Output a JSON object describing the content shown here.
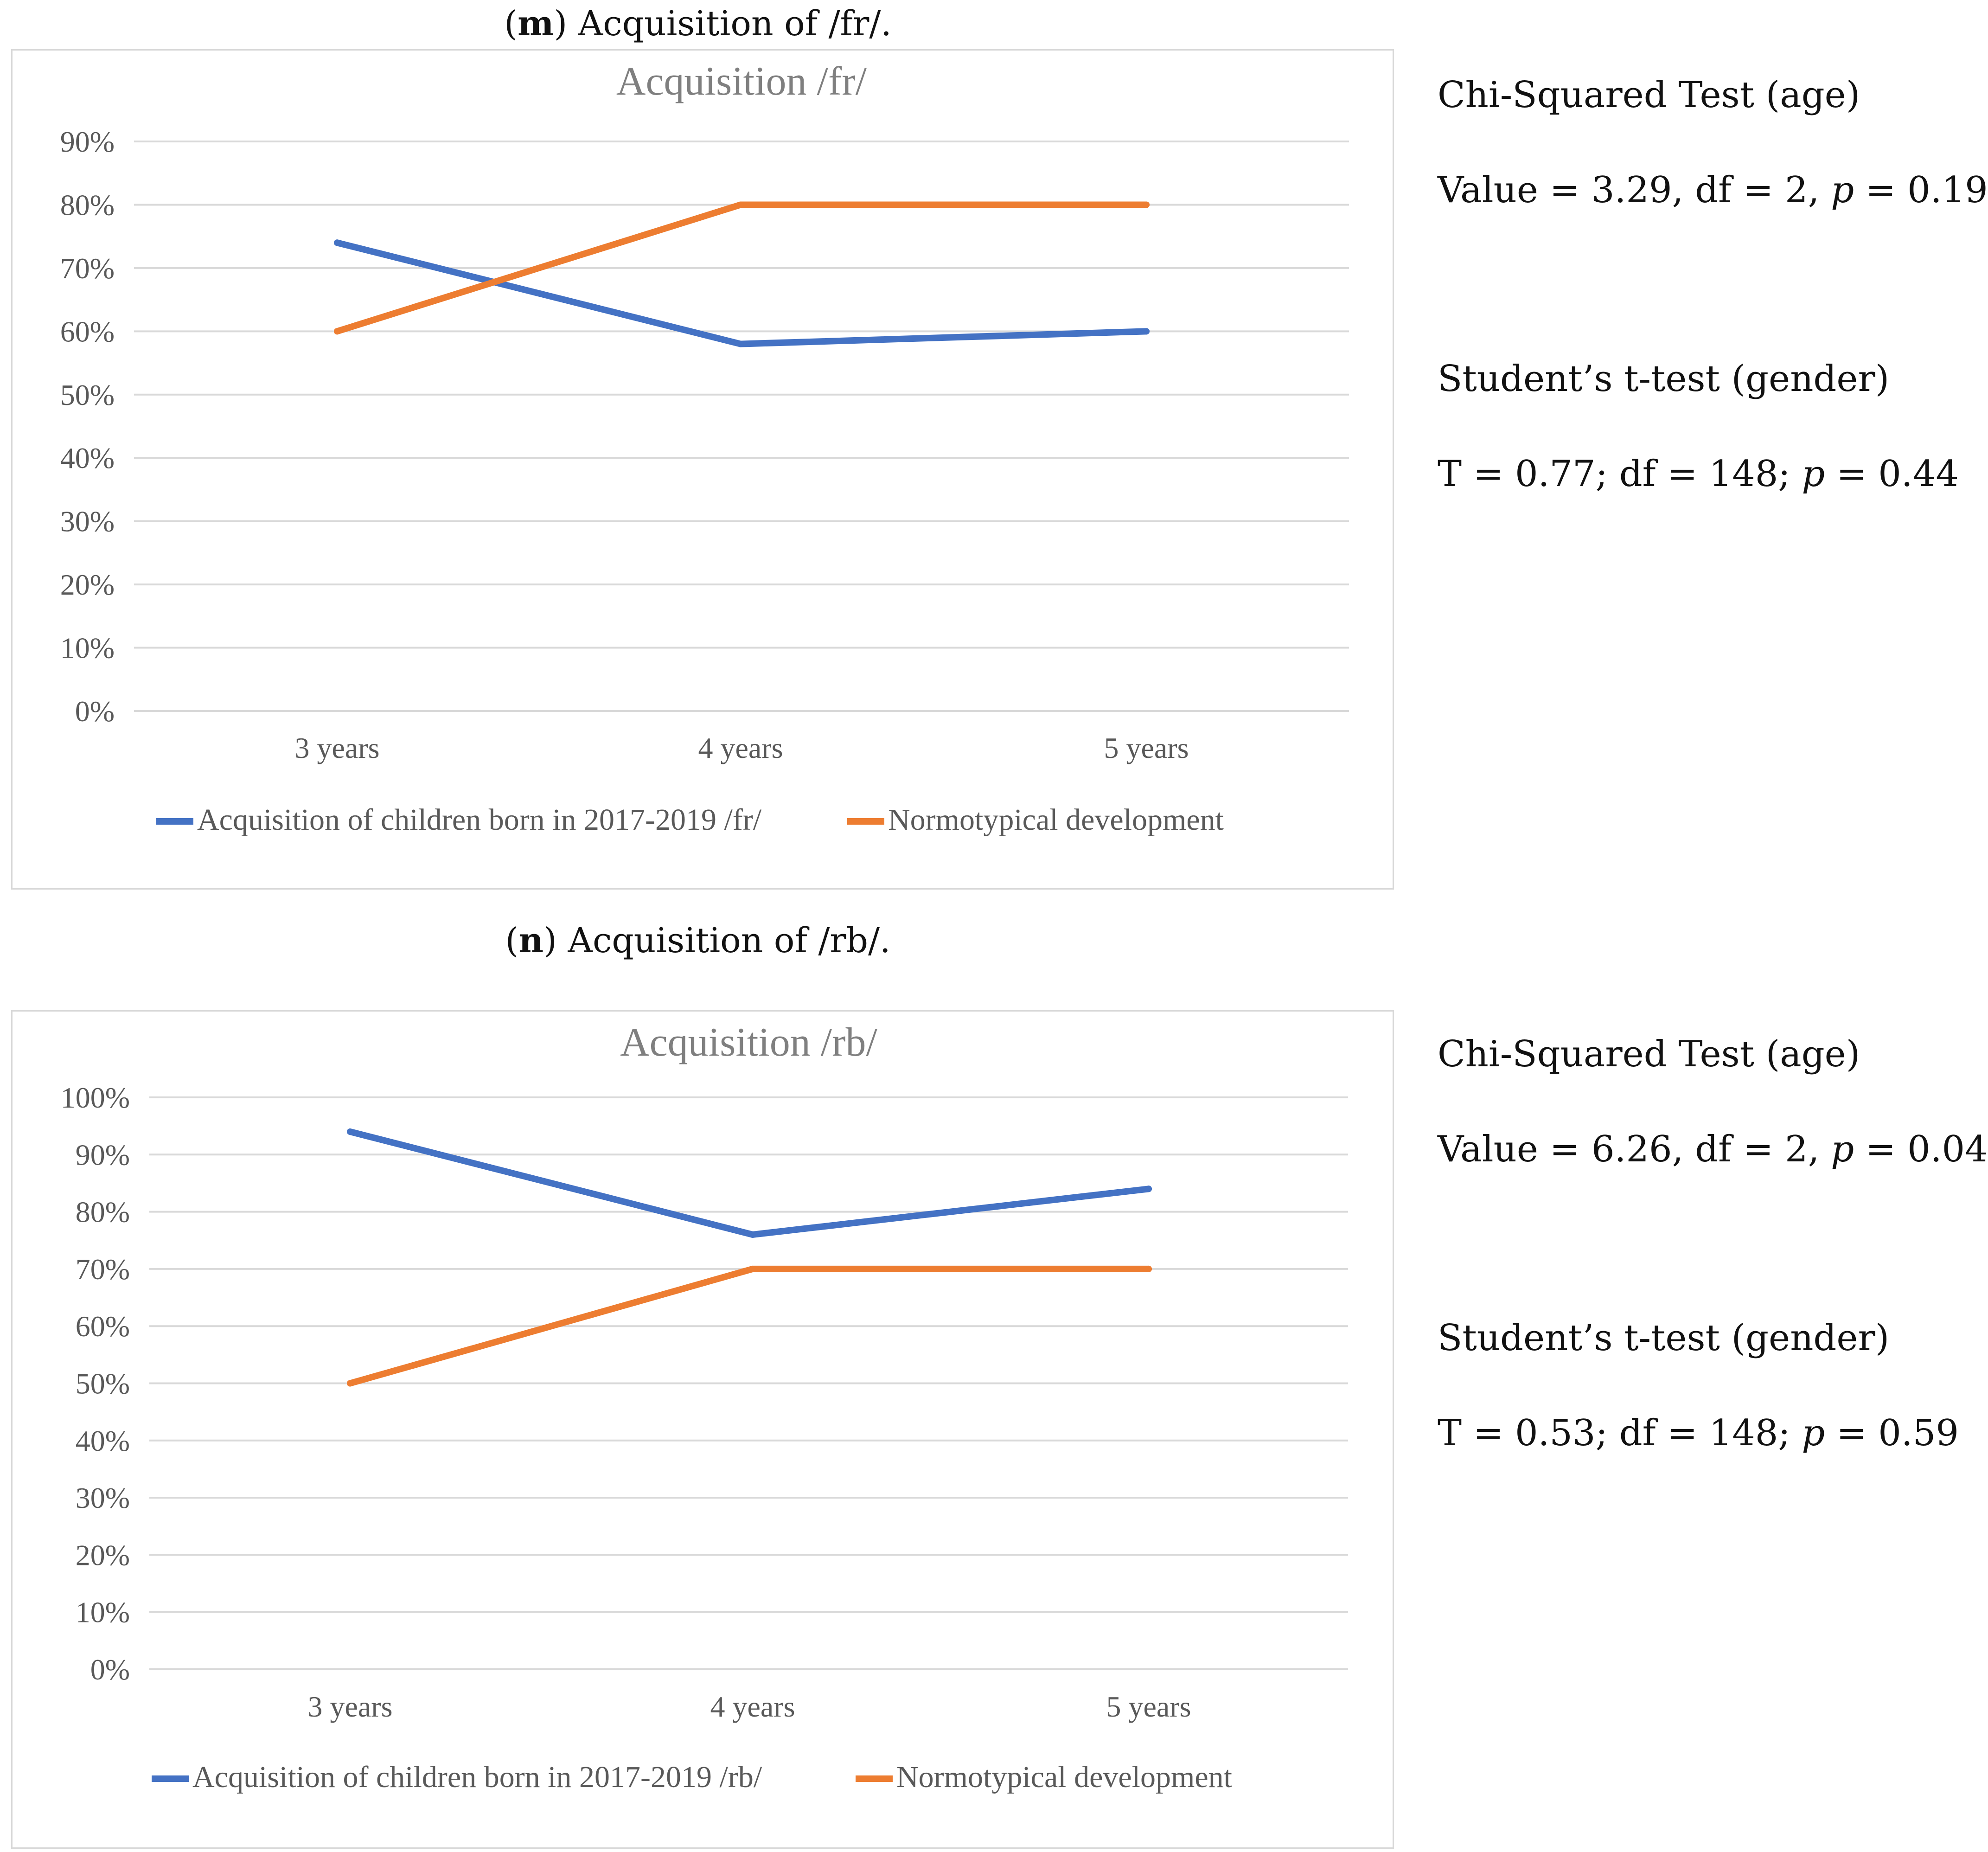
{
  "panels": [
    {
      "caption_letter": "m",
      "caption_text": ") Acquisition of /fr/.",
      "stats": {
        "chi_label": "Chi-Squared Test (age)",
        "chi_prefix": "Value = 3.29, df = 2, ",
        "chi_p_symbol": "p",
        "chi_suffix": " = 0.19",
        "t_label": "Student’s t-test (gender)",
        "t_prefix": "T = 0.77; df = 148; ",
        "t_p_symbol": "p",
        "t_suffix": " = 0.44"
      }
    },
    {
      "caption_letter": "n",
      "caption_text": ") Acquisition of /rb/.",
      "stats": {
        "chi_label": "Chi-Squared Test (age)",
        "chi_prefix": "Value = 6.26, df = 2, ",
        "chi_p_symbol": "p",
        "chi_suffix": " = 0.04",
        "t_label": "Student’s t-test (gender)",
        "t_prefix": "T = 0.53; df = 148; ",
        "t_p_symbol": "p",
        "t_suffix": " = 0.59"
      }
    }
  ],
  "colors": {
    "blue": "#4472c4",
    "orange": "#ed7d31",
    "grid": "#d9d9d9"
  },
  "chart_data": [
    {
      "type": "line",
      "title": "Acquisition /fr/",
      "categories": [
        "3 years",
        "4 years",
        "5 years"
      ],
      "y_ticks": [
        "0%",
        "10%",
        "20%",
        "30%",
        "40%",
        "50%",
        "60%",
        "70%",
        "80%",
        "90%"
      ],
      "ylim": [
        0,
        90
      ],
      "series": [
        {
          "name": "Acquisition of children born in 2017-2019  /fr/",
          "values": [
            74,
            58,
            60
          ]
        },
        {
          "name": "Normotypical development",
          "values": [
            60,
            80,
            80
          ]
        }
      ],
      "legend_position": "bottom"
    },
    {
      "type": "line",
      "title": "Acquisition /rb/",
      "categories": [
        "3 years",
        "4 years",
        "5 years"
      ],
      "y_ticks": [
        "0%",
        "10%",
        "20%",
        "30%",
        "40%",
        "50%",
        "60%",
        "70%",
        "80%",
        "90%",
        "100%"
      ],
      "ylim": [
        0,
        100
      ],
      "series": [
        {
          "name": "Acquisition of children born in 2017-2019  /rb/",
          "values": [
            94,
            76,
            84
          ]
        },
        {
          "name": "Normotypical development",
          "values": [
            50,
            70,
            70
          ]
        }
      ],
      "legend_position": "bottom"
    }
  ]
}
